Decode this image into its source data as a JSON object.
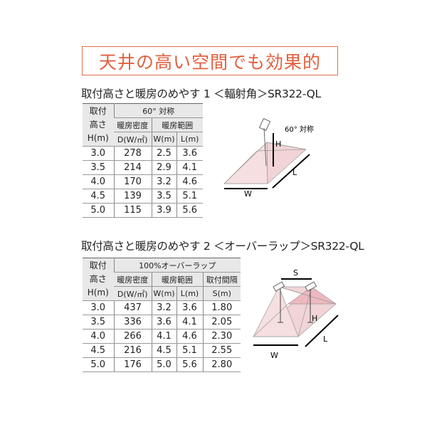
{
  "title": "天井の高い空間でも効果的",
  "section1": {
    "heading": "取付高さと暖房のめやす 1 ＜輻射角＞SR322-QL",
    "header": {
      "row_label": [
        "取付",
        "高さ",
        "H(m)"
      ],
      "group": "60° 対称",
      "density": "暖房密度",
      "range": "暖房範囲",
      "units": [
        "D(W/㎡)",
        "W(m)",
        "L(m)"
      ]
    },
    "rows": [
      [
        "3.0",
        "278",
        "2.5",
        "3.6"
      ],
      [
        "3.5",
        "214",
        "2.9",
        "4.1"
      ],
      [
        "4.0",
        "170",
        "3.2",
        "4.6"
      ],
      [
        "4.5",
        "139",
        "3.5",
        "5.1"
      ],
      [
        "5.0",
        "115",
        "3.9",
        "5.6"
      ]
    ],
    "diagram": {
      "angle_label": "60° 対称",
      "h": "H",
      "w": "W",
      "l": "L"
    }
  },
  "section2": {
    "heading": "取付高さと暖房のめやす 2 ＜オーバーラップ＞SR322-QL",
    "header": {
      "row_label": [
        "取付",
        "高さ",
        "H(m)"
      ],
      "group": "100%オーバーラップ",
      "density": "暖房密度",
      "range": "暖房範囲",
      "spacing": "取付間隔",
      "units": [
        "D(W/㎡)",
        "W(m)",
        "L(m)",
        "S(m)"
      ]
    },
    "rows": [
      [
        "3.0",
        "437",
        "3.2",
        "3.6",
        "1.80"
      ],
      [
        "3.5",
        "336",
        "3.6",
        "4.1",
        "2.05"
      ],
      [
        "4.0",
        "266",
        "4.1",
        "4.6",
        "2.30"
      ],
      [
        "4.5",
        "216",
        "4.5",
        "5.1",
        "2.55"
      ],
      [
        "5.0",
        "176",
        "5.0",
        "5.6",
        "2.80"
      ]
    ],
    "diagram": {
      "s": "S",
      "h": "H",
      "w": "W",
      "l": "L"
    }
  },
  "colors": {
    "accent": "#e0603f",
    "header_bg": "#e8e8e8",
    "cone_fill": "#f2d4d6"
  }
}
